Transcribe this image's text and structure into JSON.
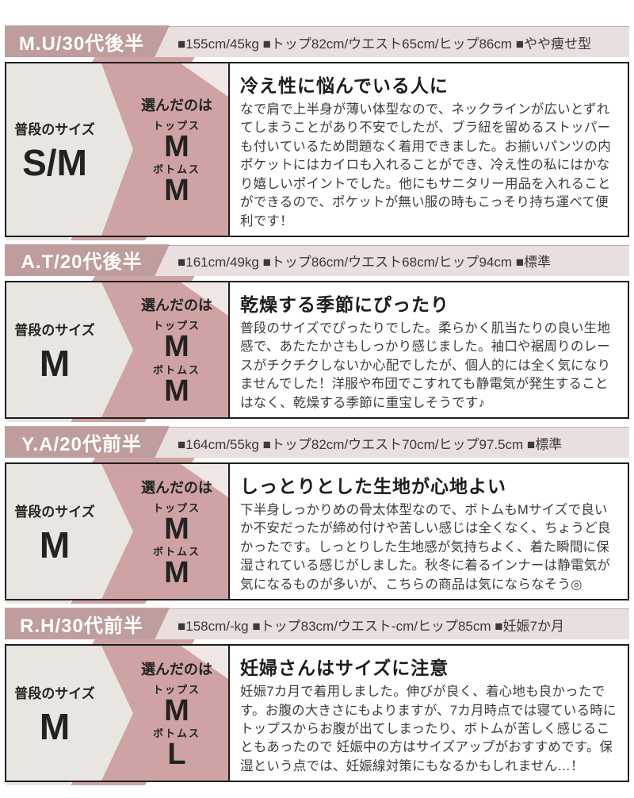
{
  "colors": {
    "label_mauve": "#bf9d9d",
    "zone_pink": "#cfa3a3",
    "zone_gray": "#e9e6e2",
    "header_bg": "#eadfdf",
    "box_border": "#1e1e1e"
  },
  "labels": {
    "usual_size": "普段のサイズ",
    "chosen": "選んだのは",
    "tops": "トップス",
    "bottoms": "ボトムス"
  },
  "reviews": [
    {
      "reviewer": "M.U/30代後半",
      "specs": "■155cm/45kg ■トップ82cm/ウエスト65cm/ヒップ86cm ■やや痩せ型",
      "usual_size": "S/M",
      "tops_size": "M",
      "bottoms_size": "M",
      "title": "冷え性に悩んでいる人に",
      "body": "なで肩で上半身が薄い体型なので、ネックラインが広いとずれてしまうことがあり不安でしたが、ブラ紐を留めるストッパーも付いているため問題なく着用できました。お揃いパンツの内ポケットにはカイロも入れることができ、冷え性の私にはかなり嬉しいポイントでした。他にもサニタリー用品を入れることができるので、ポケットが無い服の時もこっそり持ち運べて便利です！"
    },
    {
      "reviewer": "A.T/20代後半",
      "specs": "■161cm/49kg ■トップ86cm/ウエスト68cm/ヒップ94cm ■標準",
      "usual_size": "M",
      "tops_size": "M",
      "bottoms_size": "M",
      "title": "乾燥する季節にぴったり",
      "body": "普段のサイズでぴったりでした。柔らかく肌当たりの良い生地感で、あたたかさもしっかり感じました。袖口や裾周りのレースがチクチクしないか心配でしたが、個人的には全く気になりませんでした！洋服や布団でこすれても静電気が発生することはなく、乾燥する季節に重宝しそうです♪"
    },
    {
      "reviewer": "Y.A/20代前半",
      "specs": "■164cm/55kg ■トップ82cm/ウエスト70cm/ヒップ97.5cm ■標準",
      "usual_size": "M",
      "tops_size": "M",
      "bottoms_size": "M",
      "title": "しっとりとした生地が心地よい",
      "body": "下半身しっかりめの骨太体型なので、ボトムもMサイズで良いか不安だったが締め付けや苦しい感じは全くなく、ちょうど良かったです。しっとりした生地感が気持ちよく、着た瞬間に保湿されている感じがしました。秋冬に着るインナーは静電気が気になるものが多いが、こちらの商品は気にならなそう◎"
    },
    {
      "reviewer": "R.H/30代前半",
      "specs": "■158cm/-kg ■トップ83cm/ウエスト-cm/ヒップ85cm ■妊娠7か月",
      "usual_size": "M",
      "tops_size": "M",
      "bottoms_size": "L",
      "title": "妊婦さんはサイズに注意",
      "body": "妊娠7カ月で着用しました。伸びが良く、着心地も良かったです。お腹の大きさにもよりますが、7カ月時点では寝ている時にトップスからお腹が出てしまったり、ボトムが苦しく感じることもあったので 妊娠中の方はサイズアップがおすすめです。保湿という点では、妊娠線対策にもなるかもしれません…！"
    }
  ]
}
